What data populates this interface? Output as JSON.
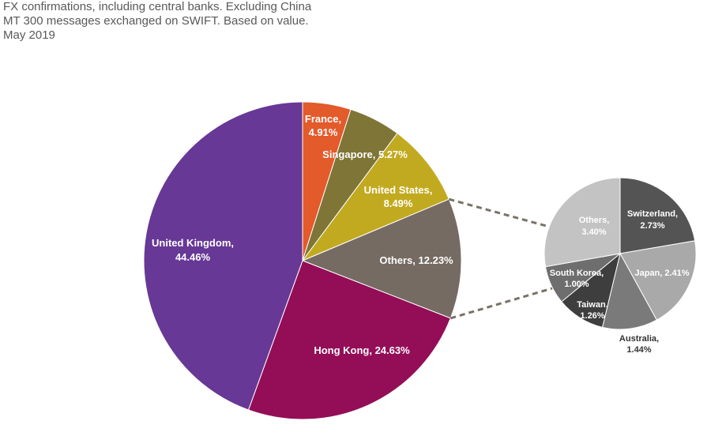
{
  "caption": {
    "line1": "FX confirmations, including central banks. Excluding China",
    "line2": "MT 300 messages exchanged on SWIFT. Based on value.",
    "line3": "May 2019"
  },
  "chart_data": [
    {
      "type": "pie",
      "slices": [
        {
          "label": "France,",
          "value_label": "4.91%",
          "value": 4.91,
          "color": "#E35A2B"
        },
        {
          "label": "Singapore,",
          "value_label": "5.27%",
          "value": 5.27,
          "color": "#7E7537"
        },
        {
          "label": "United States,",
          "value_label": "8.49%",
          "value": 8.49,
          "color": "#C2AA20"
        },
        {
          "label": "Others,",
          "value_label": "12.23%",
          "value": 12.23,
          "color": "#756B62"
        },
        {
          "label": "Hong Kong,",
          "value_label": "24.63%",
          "value": 24.63,
          "color": "#930E57"
        },
        {
          "label": "United Kingdom,",
          "value_label": "44.46%",
          "value": 44.46,
          "color": "#673895"
        }
      ]
    },
    {
      "type": "pie",
      "slices": [
        {
          "label": "Switzerland,",
          "value_label": "2.73%",
          "value": 2.73,
          "color": "#545454"
        },
        {
          "label": "Japan,",
          "value_label": "2.41%",
          "value": 2.41,
          "color": "#A9A9A9"
        },
        {
          "label": "Australia,",
          "value_label": "1.44%",
          "value": 1.44,
          "color": "#7A7A7A"
        },
        {
          "label": "Taiwan,",
          "value_label": "1.26%",
          "value": 1.26,
          "color": "#3E3E3E"
        },
        {
          "label": "South Korea,",
          "value_label": "1.00%",
          "value": 1.0,
          "color": "#6E6E6E"
        },
        {
          "label": "Others,",
          "value_label": "3.40%",
          "value": 3.4,
          "color": "#C3C3C3"
        }
      ]
    }
  ]
}
